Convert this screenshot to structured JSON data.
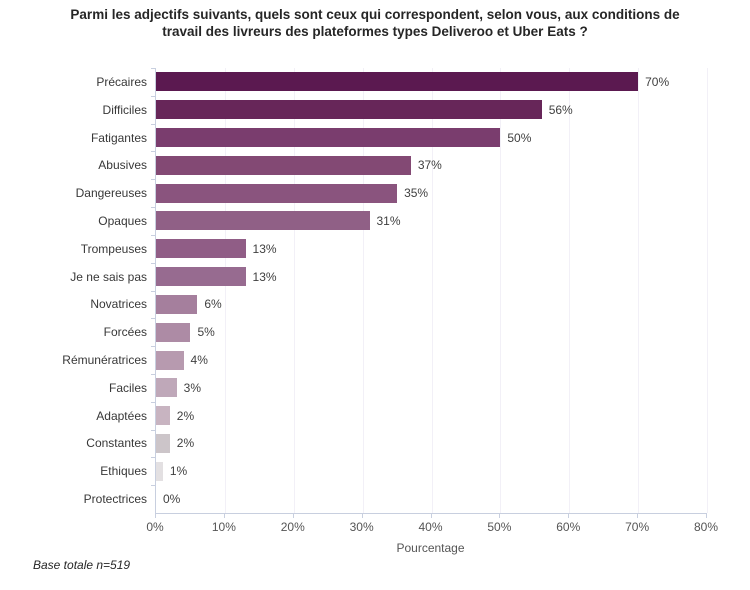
{
  "title": {
    "line1": "Parmi les adjectifs suivants, quels sont ceux qui correspondent, selon vous, aux conditions de",
    "line2": "travail des livreurs des plateformes types Deliveroo et Uber Eats ?"
  },
  "chart_data": {
    "type": "bar",
    "orientation": "horizontal",
    "title": "Parmi les adjectifs suivants, quels sont ceux qui correspondent, selon vous, aux conditions de travail des livreurs des plateformes types Deliveroo et Uber Eats ?",
    "categories": [
      "Précaires",
      "Difficiles",
      "Fatigantes",
      "Abusives",
      "Dangereuses",
      "Opaques",
      "Trompeuses",
      "Je ne sais pas",
      "Novatrices",
      "Forcées",
      "Rémunératrices",
      "Faciles",
      "Adaptées",
      "Constantes",
      "Ethiques",
      "Protectrices"
    ],
    "values": [
      70,
      56,
      50,
      37,
      35,
      31,
      13,
      13,
      6,
      5,
      4,
      3,
      2,
      2,
      1,
      0
    ],
    "value_labels": [
      "70%",
      "56%",
      "50%",
      "37%",
      "35%",
      "31%",
      "13%",
      "13%",
      "6%",
      "5%",
      "4%",
      "3%",
      "2%",
      "2%",
      "1%",
      "0%"
    ],
    "bar_colors": [
      "#5b1950",
      "#672659",
      "#7a3d6e",
      "#834974",
      "#8a547e",
      "#906086",
      "#905d86",
      "#976b90",
      "#a57f9d",
      "#ad8ba5",
      "#b79aaf",
      "#bfa8b9",
      "#c8b4c1",
      "#ccc5c9",
      "#e3e0e2",
      "#e6e3e5"
    ],
    "xlabel": "Pourcentage",
    "ylabel": "",
    "x_ticks": [
      "0%",
      "10%",
      "20%",
      "30%",
      "40%",
      "50%",
      "60%",
      "70%",
      "80%"
    ],
    "xlim": [
      0,
      80
    ],
    "grid": "faint vertical gridlines",
    "legend": "none"
  },
  "footer": {
    "note": "Base totale n=519"
  },
  "colors": {
    "axis": "#c8cfdf",
    "grid": "#f2f0f7",
    "title_text": "#262626",
    "label_text": "#383838",
    "tick_text": "#555555"
  }
}
